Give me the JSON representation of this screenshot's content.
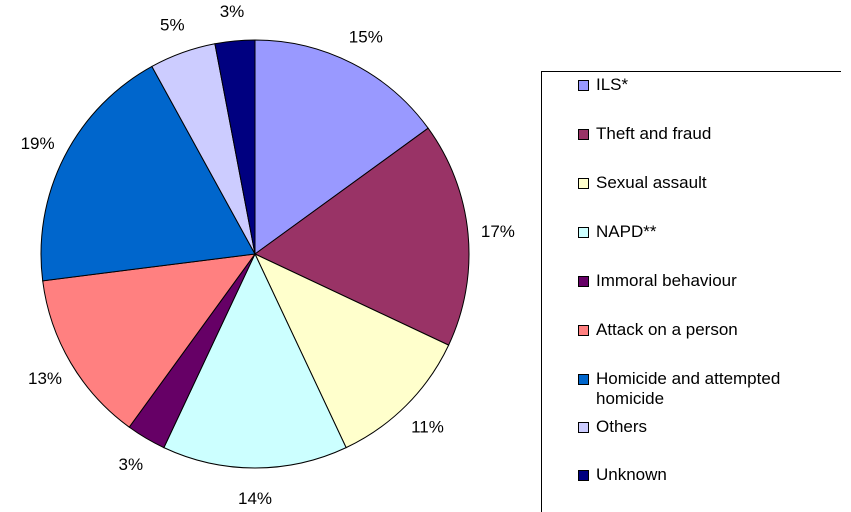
{
  "chart_data": {
    "type": "pie",
    "title": "",
    "legend_position": "right",
    "slices": [
      {
        "label": "ILS*",
        "value": 15,
        "pct_label": "15%",
        "color": "#9999FF"
      },
      {
        "label": "Theft and fraud",
        "value": 17,
        "pct_label": "17%",
        "color": "#993366"
      },
      {
        "label": "Sexual assault",
        "value": 11,
        "pct_label": "11%",
        "color": "#FFFFCC"
      },
      {
        "label": "NAPD**",
        "value": 14,
        "pct_label": "14%",
        "color": "#CCFFFF"
      },
      {
        "label": "Immoral behaviour",
        "value": 3,
        "pct_label": "3%",
        "color": "#660066"
      },
      {
        "label": "Attack on a person",
        "value": 13,
        "pct_label": "13%",
        "color": "#FF8080"
      },
      {
        "label": "Homicide and attempted homicide",
        "value": 19,
        "pct_label": "19%",
        "color": "#0066CC"
      },
      {
        "label": "Others",
        "value": 5,
        "pct_label": "5%",
        "color": "#CCCCFF"
      },
      {
        "label": "Unknown",
        "value": 3,
        "pct_label": "3%",
        "color": "#000080"
      }
    ]
  }
}
